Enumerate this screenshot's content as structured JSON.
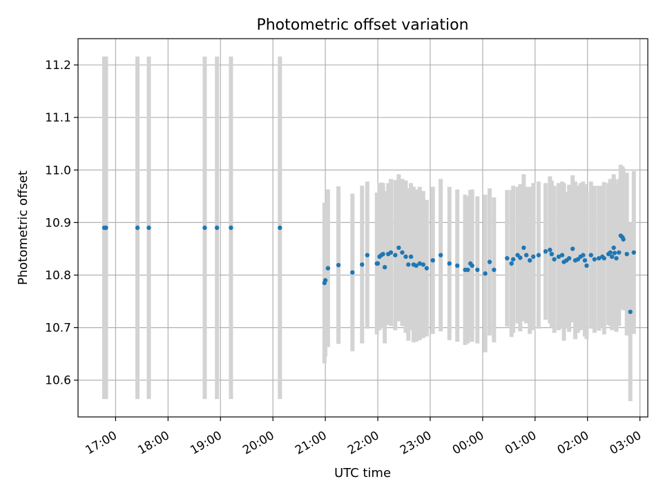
{
  "chart_data": {
    "type": "scatter",
    "title": "Photometric offset variation",
    "xlabel": "UTC time",
    "ylabel": "Photometric offset",
    "grid": true,
    "colors": {
      "points": "#1f77b4",
      "errorbars": "#d3d3d3"
    },
    "xlim": [
      "16:17",
      "03:09"
    ],
    "ylim": [
      10.53,
      11.25
    ],
    "x_ticks": [
      "17:00",
      "18:00",
      "19:00",
      "20:00",
      "21:00",
      "22:00",
      "23:00",
      "00:00",
      "01:00",
      "02:00",
      "03:00"
    ],
    "y_ticks": [
      "10.6",
      "10.7",
      "10.8",
      "10.9",
      "11.0",
      "11.1",
      "11.2"
    ],
    "series": [
      {
        "x": [
          "16:47",
          "16:49",
          "17:25",
          "17:38",
          "18:42",
          "18:56",
          "19:12",
          "20:08",
          "20:59",
          "21:00",
          "21:03",
          "21:15",
          "21:31",
          "21:42",
          "21:48",
          "21:59",
          "22:00",
          "22:02",
          "22:04",
          "22:06",
          "22:08",
          "22:12",
          "22:15",
          "22:20",
          "22:24",
          "22:28",
          "22:32",
          "22:35",
          "22:38",
          "22:41",
          "22:44",
          "22:48",
          "22:52",
          "22:56",
          "23:03",
          "23:12",
          "23:22",
          "23:31",
          "23:40",
          "23:43",
          "23:46",
          "23:48",
          "23:54",
          "24:03",
          "24:08",
          "24:13",
          "24:28",
          "24:33",
          "24:35",
          "24:40",
          "24:43",
          "24:47",
          "24:50",
          "24:54",
          "24:58",
          "25:04",
          "25:12",
          "25:17",
          "25:19",
          "25:22",
          "25:27",
          "25:31",
          "25:33",
          "25:36",
          "25:39",
          "25:43",
          "25:46",
          "25:49",
          "25:52",
          "25:55",
          "25:57",
          "25:59",
          "26:04",
          "26:08",
          "26:13",
          "26:17",
          "26:19",
          "26:24",
          "26:26",
          "26:28",
          "26:30",
          "26:31",
          "26:33",
          "26:36",
          "26:38",
          "26:40",
          "26:41",
          "26:45",
          "26:49",
          "26:53"
        ],
        "y": [
          10.89,
          10.89,
          10.89,
          10.89,
          10.89,
          10.89,
          10.89,
          10.89,
          10.785,
          10.79,
          10.813,
          10.819,
          10.805,
          10.82,
          10.838,
          10.822,
          10.822,
          10.835,
          10.838,
          10.84,
          10.815,
          10.84,
          10.843,
          10.838,
          10.852,
          10.843,
          10.835,
          10.82,
          10.835,
          10.82,
          10.818,
          10.822,
          10.82,
          10.813,
          10.828,
          10.838,
          10.822,
          10.818,
          10.81,
          10.81,
          10.822,
          10.818,
          10.81,
          10.803,
          10.825,
          10.81,
          10.832,
          10.822,
          10.83,
          10.838,
          10.833,
          10.852,
          10.838,
          10.828,
          10.835,
          10.838,
          10.845,
          10.848,
          10.84,
          10.83,
          10.835,
          10.838,
          10.825,
          10.828,
          10.832,
          10.85,
          10.828,
          10.83,
          10.835,
          10.838,
          10.828,
          10.818,
          10.838,
          10.83,
          10.832,
          10.835,
          10.832,
          10.84,
          10.843,
          10.835,
          10.852,
          10.842,
          10.832,
          10.843,
          10.875,
          10.872,
          10.868,
          10.84,
          10.73,
          10.843
        ],
        "err": [
          0.326,
          0.326,
          0.326,
          0.326,
          0.326,
          0.326,
          0.326,
          0.326,
          0.153,
          0.145,
          0.15,
          0.15,
          0.15,
          0.15,
          0.14,
          0.135,
          0.125,
          0.14,
          0.138,
          0.135,
          0.145,
          0.135,
          0.14,
          0.143,
          0.14,
          0.14,
          0.145,
          0.145,
          0.14,
          0.148,
          0.145,
          0.146,
          0.14,
          0.13,
          0.14,
          0.145,
          0.146,
          0.145,
          0.143,
          0.14,
          0.14,
          0.145,
          0.14,
          0.15,
          0.14,
          0.138,
          0.13,
          0.14,
          0.14,
          0.13,
          0.14,
          0.14,
          0.13,
          0.14,
          0.14,
          0.14,
          0.13,
          0.14,
          0.14,
          0.14,
          0.14,
          0.14,
          0.15,
          0.13,
          0.14,
          0.14,
          0.15,
          0.14,
          0.14,
          0.14,
          0.145,
          0.14,
          0.14,
          0.14,
          0.138,
          0.135,
          0.145,
          0.135,
          0.14,
          0.14,
          0.14,
          0.14,
          0.14,
          0.14,
          0.135,
          0.135,
          0.135,
          0.155,
          0.17,
          0.155
        ]
      }
    ]
  }
}
